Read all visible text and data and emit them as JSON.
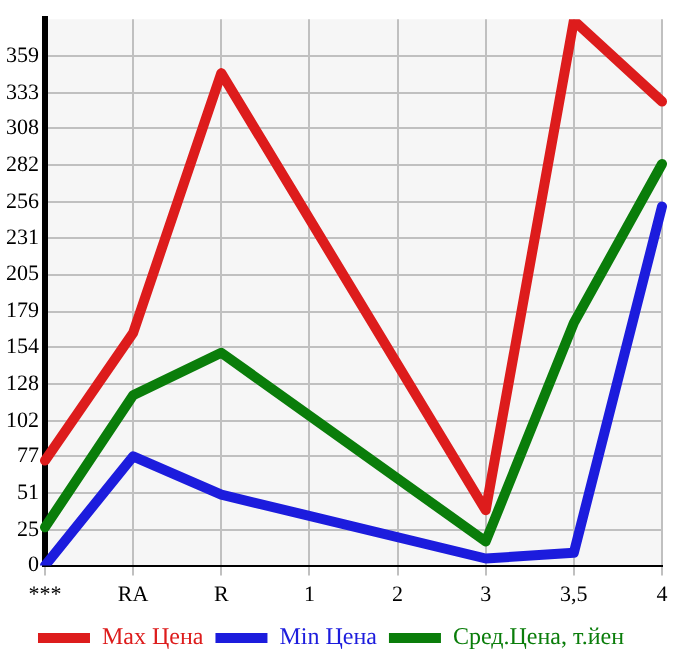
{
  "chart_data": {
    "type": "line",
    "categories": [
      "***",
      "RA",
      "R",
      "1",
      "2",
      "3",
      "3,5",
      "4"
    ],
    "series": [
      {
        "name": "Max Цена",
        "color": "#dd1c1c",
        "values": [
          74,
          164,
          347,
          null,
          null,
          39,
          384,
          327
        ]
      },
      {
        "name": "Min Цена",
        "color": "#1c1cdd",
        "values": [
          0,
          77,
          50,
          null,
          null,
          5,
          9,
          253
        ]
      },
      {
        "name": "Сред.Цена, т.йен",
        "color": "#0a7d0a",
        "values": [
          27,
          120,
          150,
          null,
          null,
          17,
          171,
          283
        ]
      }
    ],
    "ylim": [
      0,
      385
    ],
    "yticks": [
      0,
      25,
      51,
      77,
      102,
      128,
      154,
      179,
      205,
      231,
      256,
      282,
      308,
      333,
      359
    ],
    "grid": true,
    "legend": "bottom",
    "marker": "none",
    "line_style": "solid"
  }
}
